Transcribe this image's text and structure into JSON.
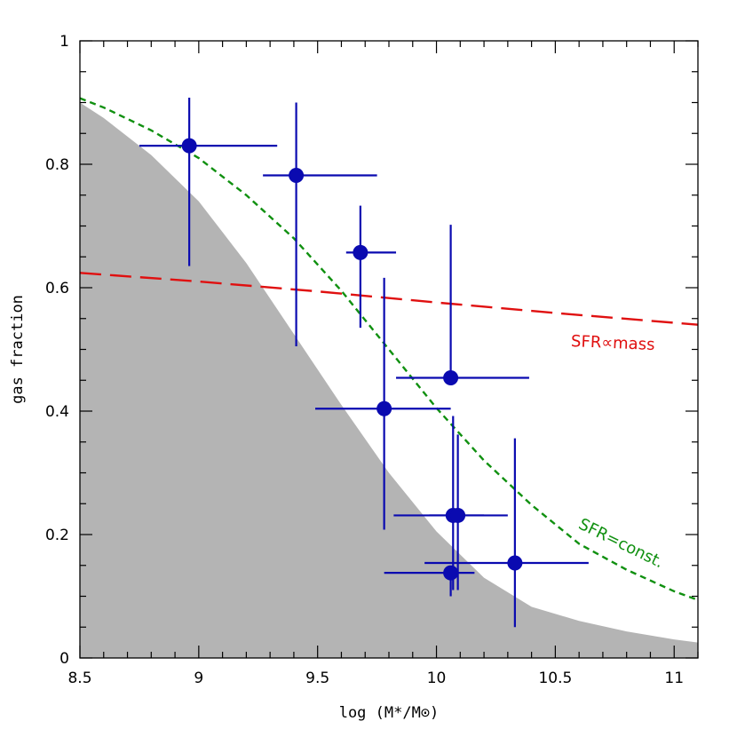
{
  "chart_data": {
    "type": "scatter",
    "xlabel": "log (M*/M⊙)",
    "ylabel": "gas fraction",
    "xlim": [
      8.5,
      11.1
    ],
    "ylim": [
      0,
      1
    ],
    "x_ticks": [
      8.5,
      9,
      9.5,
      10,
      10.5,
      11
    ],
    "x_tick_labels": [
      "8.5",
      "9",
      "9.5",
      "10",
      "10.5",
      "11"
    ],
    "y_ticks": [
      0,
      0.2,
      0.4,
      0.6,
      0.8,
      1
    ],
    "y_tick_labels": [
      "0",
      "0.2",
      "0.4",
      "0.6",
      "0.8",
      "1"
    ],
    "grid": false,
    "colors": {
      "points": "#0a0ab0",
      "sfr_mass": "#e01010",
      "sfr_const": "#109010",
      "shade": "#b4b4b4"
    },
    "points": [
      {
        "x": 8.96,
        "y": 0.83,
        "xerr": [
          0.21,
          0.37
        ],
        "yerr": [
          0.195,
          0.078
        ]
      },
      {
        "x": 9.41,
        "y": 0.782,
        "xerr": [
          0.14,
          0.34
        ],
        "yerr": [
          0.277,
          0.118
        ]
      },
      {
        "x": 9.68,
        "y": 0.657,
        "xerr": [
          0.06,
          0.15
        ],
        "yerr": [
          0.122,
          0.076
        ]
      },
      {
        "x": 9.78,
        "y": 0.404,
        "xerr": [
          0.29,
          0.28
        ],
        "yerr": [
          0.196,
          0.212
        ]
      },
      {
        "x": 10.06,
        "y": 0.454,
        "xerr": [
          0.23,
          0.33
        ],
        "yerr": [
          0.0,
          0.248
        ]
      },
      {
        "x": 10.07,
        "y": 0.231,
        "xerr": [
          0.25,
          0.13
        ],
        "yerr": [
          0.121,
          0.161
        ]
      },
      {
        "x": 10.09,
        "y": 0.231,
        "xerr": [
          0.12,
          0.21
        ],
        "yerr": [
          0.121,
          0.131
        ]
      },
      {
        "x": 10.06,
        "y": 0.138,
        "xerr": [
          0.28,
          0.1
        ],
        "yerr": [
          0.038,
          0.0
        ]
      },
      {
        "x": 10.33,
        "y": 0.154,
        "xerr": [
          0.38,
          0.31
        ],
        "yerr": [
          0.104,
          0.202
        ]
      }
    ],
    "series": [
      {
        "name": "SFR∝mass",
        "style": "long-dash",
        "x": [
          8.5,
          9.0,
          9.5,
          10.0,
          10.5,
          11.1
        ],
        "y": [
          0.624,
          0.61,
          0.594,
          0.576,
          0.559,
          0.54
        ]
      },
      {
        "name": "SFR=const",
        "style": "short-dash",
        "x": [
          8.5,
          8.6,
          8.8,
          9.0,
          9.2,
          9.4,
          9.6,
          9.8,
          10.0,
          10.2,
          10.4,
          10.6,
          10.8,
          11.0,
          11.1
        ],
        "y": [
          0.907,
          0.892,
          0.855,
          0.81,
          0.75,
          0.68,
          0.595,
          0.5,
          0.405,
          0.32,
          0.248,
          0.185,
          0.143,
          0.108,
          0.094
        ]
      }
    ],
    "shaded_region": {
      "x": [
        8.5,
        8.6,
        8.8,
        9.0,
        9.2,
        9.4,
        9.6,
        9.8,
        10.0,
        10.2,
        10.4,
        10.6,
        10.8,
        11.0,
        11.1
      ],
      "y": [
        0.9,
        0.875,
        0.815,
        0.74,
        0.64,
        0.525,
        0.41,
        0.3,
        0.205,
        0.13,
        0.083,
        0.06,
        0.043,
        0.03,
        0.025
      ]
    },
    "annotations": [
      {
        "text": "SFR∝mass",
        "series": "SFR∝mass"
      },
      {
        "text": "SFR=const.",
        "series": "SFR=const"
      }
    ]
  }
}
